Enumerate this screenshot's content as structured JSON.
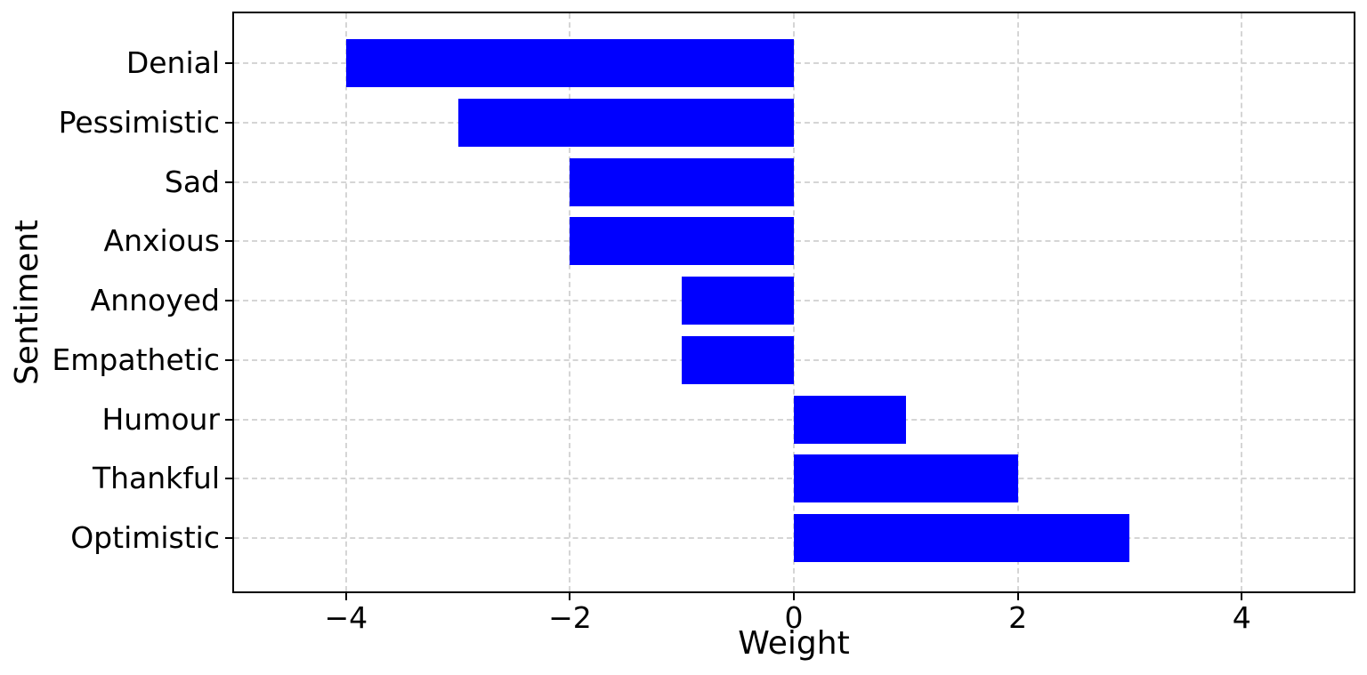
{
  "figure": {
    "background": "#ffffff"
  },
  "chart_data": {
    "type": "bar",
    "orientation": "horizontal",
    "xlabel": "Weight",
    "ylabel": "Sentiment",
    "categories": [
      "Denial",
      "Pessimistic",
      "Sad",
      "Anxious",
      "Annoyed",
      "Empathetic",
      "Humour",
      "Thankful",
      "Optimistic"
    ],
    "values": [
      -4,
      -3,
      -2,
      -2,
      -1,
      -1,
      1,
      2,
      3
    ],
    "xlim": [
      -5,
      5
    ],
    "x_ticks": [
      -4,
      -2,
      0,
      2,
      4
    ],
    "x_tick_labels": [
      "−4",
      "−2",
      "0",
      "2",
      "4"
    ],
    "bar_color": "#0000ff",
    "grid": true,
    "grid_line_style": "dashed",
    "grid_color": "#d5d5d5",
    "axis_color": "#000000",
    "text_color": "#000000",
    "legend_position": "none"
  }
}
